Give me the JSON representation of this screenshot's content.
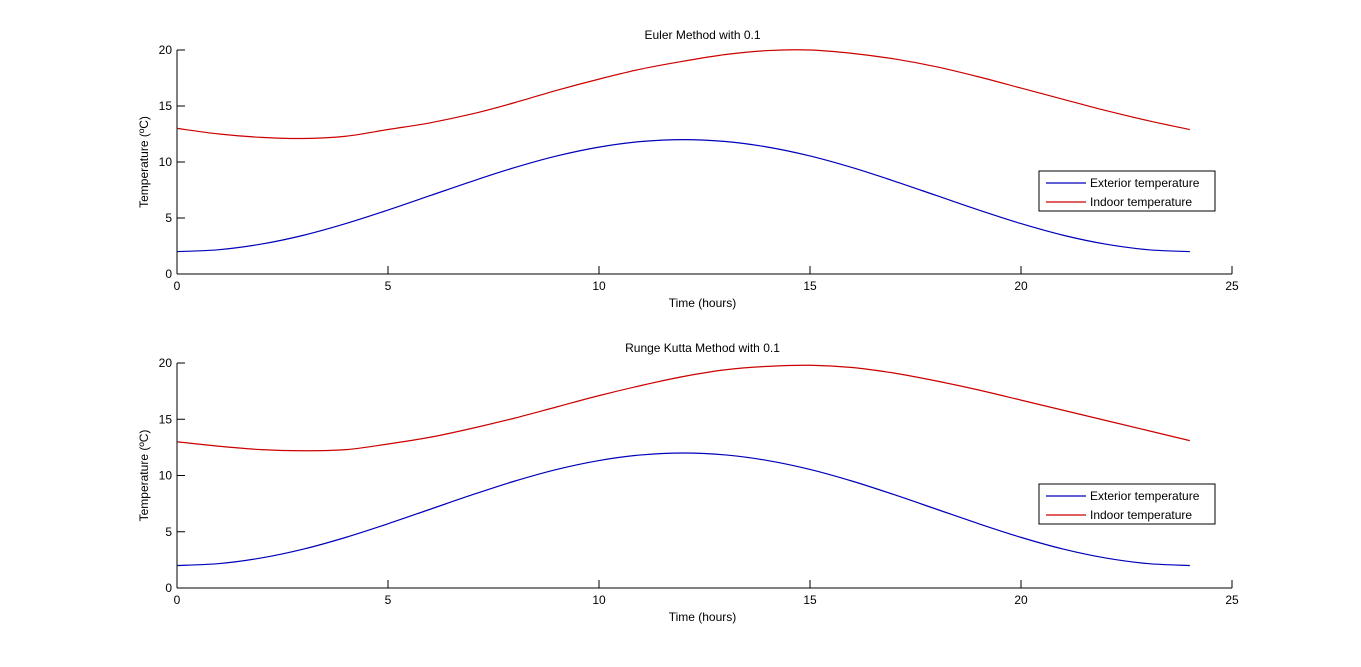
{
  "chart_data": [
    {
      "type": "line",
      "title": "Euler Method with  0.1",
      "xlabel": "Time (hours)",
      "ylabel": "Temperature (ºC)",
      "xlim": [
        0,
        25
      ],
      "ylim": [
        0,
        20
      ],
      "xticks": [
        "0",
        "5",
        "10",
        "15",
        "20",
        "25"
      ],
      "yticks": [
        "0",
        "5",
        "10",
        "15",
        "20"
      ],
      "grid": false,
      "legend_position": "right",
      "x": [
        0,
        1,
        2,
        3,
        4,
        5,
        6,
        7,
        8,
        9,
        10,
        11,
        12,
        13,
        14,
        15,
        16,
        17,
        18,
        19,
        20,
        21,
        22,
        23,
        24
      ],
      "series": [
        {
          "name": "Exterior temperature",
          "color": "#0000bb",
          "values": [
            2,
            2.17,
            2.67,
            3.46,
            4.5,
            5.71,
            7,
            8.29,
            9.5,
            10.54,
            11.33,
            11.83,
            12,
            11.83,
            11.33,
            10.54,
            9.5,
            8.29,
            7,
            5.71,
            4.5,
            3.46,
            2.67,
            2.17,
            2
          ]
        },
        {
          "name": "Indoor temperature",
          "color": "#cc0000",
          "values": [
            13,
            12.5,
            12.2,
            12.1,
            12.3,
            12.9,
            13.5,
            14.3,
            15.3,
            16.4,
            17.4,
            18.3,
            19.0,
            19.6,
            19.95,
            20.0,
            19.7,
            19.2,
            18.5,
            17.6,
            16.6,
            15.6,
            14.6,
            13.7,
            12.9
          ]
        }
      ]
    },
    {
      "type": "line",
      "title": "Runge Kutta Method with 0.1",
      "xlabel": "Time (hours)",
      "ylabel": "Temperature (ºC)",
      "xlim": [
        0,
        25
      ],
      "ylim": [
        0,
        20
      ],
      "xticks": [
        "0",
        "5",
        "10",
        "15",
        "20",
        "25"
      ],
      "yticks": [
        "0",
        "5",
        "10",
        "15",
        "20"
      ],
      "grid": false,
      "legend_position": "right",
      "x": [
        0,
        1,
        2,
        3,
        4,
        5,
        6,
        7,
        8,
        9,
        10,
        11,
        12,
        13,
        14,
        15,
        16,
        17,
        18,
        19,
        20,
        21,
        22,
        23,
        24
      ],
      "series": [
        {
          "name": "Exterior temperature",
          "color": "#0000bb",
          "values": [
            2,
            2.17,
            2.67,
            3.46,
            4.5,
            5.71,
            7,
            8.29,
            9.5,
            10.54,
            11.33,
            11.83,
            12,
            11.83,
            11.33,
            10.54,
            9.5,
            8.29,
            7,
            5.71,
            4.5,
            3.46,
            2.67,
            2.17,
            2
          ]
        },
        {
          "name": "Indoor temperature",
          "color": "#cc0000",
          "values": [
            13,
            12.6,
            12.3,
            12.2,
            12.3,
            12.8,
            13.4,
            14.2,
            15.1,
            16.1,
            17.1,
            18.0,
            18.8,
            19.4,
            19.7,
            19.8,
            19.6,
            19.1,
            18.4,
            17.6,
            16.7,
            15.8,
            14.9,
            14.0,
            13.1
          ]
        }
      ]
    }
  ]
}
